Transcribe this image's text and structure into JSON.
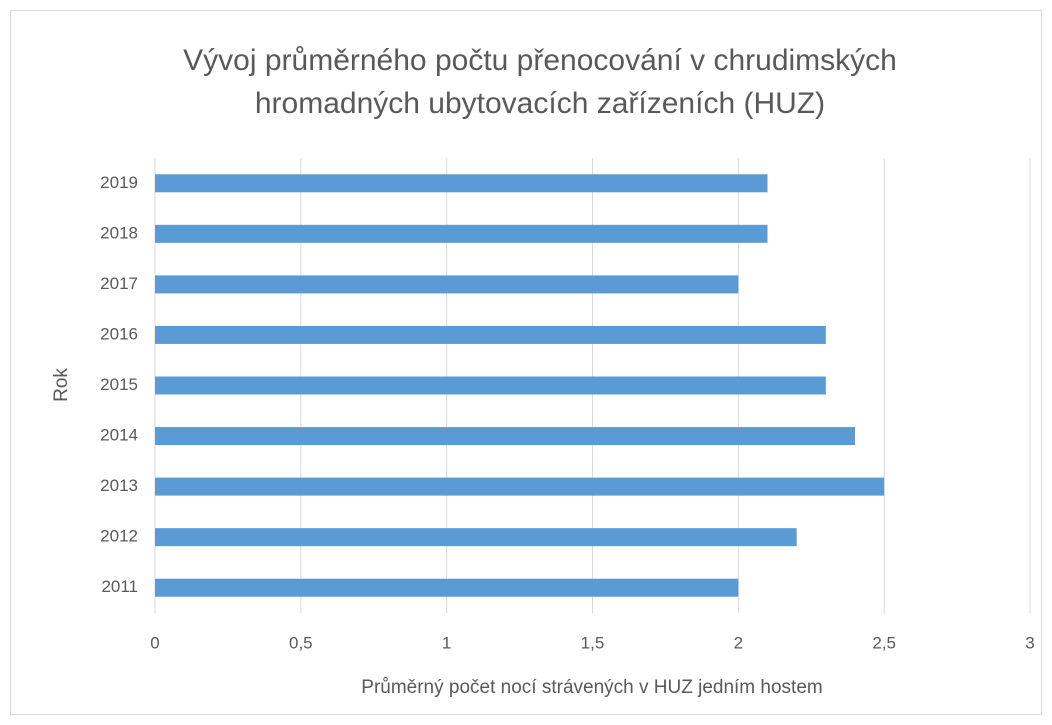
{
  "chart_data": {
    "type": "barh",
    "title": [
      "Vývoj průměrného počtu přenocování v chrudimských",
      "hromadných ubytovacích zařízeních (HUZ)"
    ],
    "xlabel": "Průměrný počet nocí strávených v HUZ jedním hostem",
    "ylabel": "Rok",
    "categories": [
      "2011",
      "2012",
      "2013",
      "2014",
      "2015",
      "2016",
      "2017",
      "2018",
      "2019"
    ],
    "values": [
      2.0,
      2.2,
      2.5,
      2.4,
      2.3,
      2.3,
      2.0,
      2.1,
      2.1
    ],
    "color": "#5b9bd5",
    "xlim": [
      0,
      3
    ],
    "xticks": [
      0,
      {
        "value": 0.5,
        "label": "0,5"
      },
      1,
      {
        "value": 1.5,
        "label": "1,5"
      },
      2,
      {
        "value": 2.5,
        "label": "2,5"
      },
      3
    ],
    "grid": true
  }
}
